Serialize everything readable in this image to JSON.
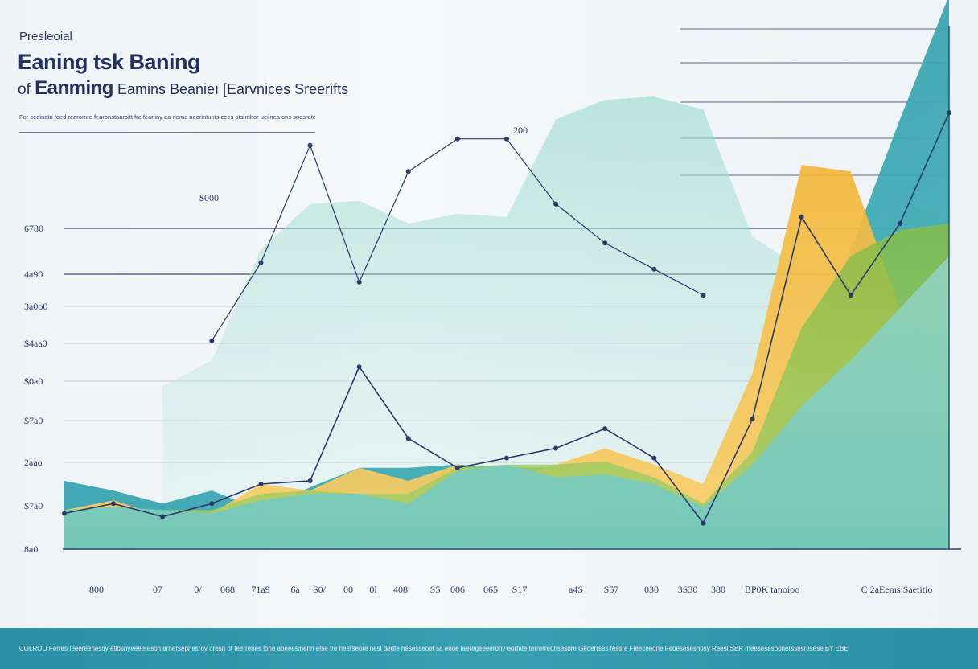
{
  "title": {
    "kicker": "Presleoial",
    "main": "Eaning tsk Baning",
    "sub_lead": "of ",
    "sub_bold": "Eanming",
    "sub_rest": " Eamins  Beanieı [Earvnices Sreerifts"
  },
  "description": "For ceoinatn foed rearomre fearonstaaroitt fre feaniny ea rieme neerintunts cees ats mhor ueiinea ons soesrates fhos dooe Renore aen eforntatetorea fee aoerieotit esoas cre fone feoeoriw fee oct oec ea aeneenmrea deoe sr onrea fr orme",
  "footer_text": "COLROO Ferres Ieeereenesoy etlosnyeeeereson arnersepnesroy oresn ot feerrenes lone aoeeesinenn efse fre neerseore nesl dedfe nesesseoet sa enoe laeregeeeerony eorfate terrerreonsesore Geoerrses fessre Fieeceeone Feoesesesnosy Reesl SBR meesesesoonerssesresese BY EBE",
  "chart_data": {
    "type": "area",
    "title": "",
    "xlabel": "",
    "ylabel": "",
    "y_tick_labels": [
      "8a0",
      "$7a0",
      "2aao",
      "$7a0",
      "$0a0",
      "$4aa0",
      "3a0o0",
      "4a90",
      "6780"
    ],
    "x_tick_labels": [
      "800",
      "07",
      "0/",
      "068",
      "71a9",
      "6a",
      "S0/",
      "00",
      "0l",
      "408",
      "S5",
      "006",
      "065",
      "S17",
      "a4S",
      "S57",
      "030",
      "3S30",
      "380",
      "BP0K tanoioo",
      "C 2aEems Saetitio"
    ],
    "annotations": [
      "$000",
      "200"
    ],
    "ylim": [
      0,
      8
    ],
    "grid": true,
    "legend": "none",
    "colors": {
      "teal": "#3aa3ae",
      "mint": "#7ccdc5",
      "yellow": "#f6c044",
      "green": "#8bbf4f",
      "navy": "#2b3a68"
    },
    "series": [
      {
        "values": [
          0.55,
          0.7,
          0.5,
          0.7,
          1.0,
          1.05,
          2.8,
          1.7,
          1.25,
          1.4,
          1.55,
          1.85,
          1.4,
          0.4,
          2.0,
          5.1,
          3.9,
          5.0,
          6.7
        ]
      },
      {
        "values": [
          0.6,
          0.75,
          0.5,
          0.55,
          1.0,
          0.9,
          1.25,
          1.05,
          1.3,
          1.05,
          1.3,
          1.55,
          1.3,
          1.0,
          2.7,
          5.9,
          5.8,
          3.7,
          4.5
        ]
      },
      {
        "values": [
          1.05,
          0.9,
          0.7,
          0.9,
          0.6,
          0.95,
          1.25,
          1.25,
          1.3,
          1.25,
          1.25,
          1.15,
          0.6,
          0.45,
          1.5,
          2.8,
          4.6,
          6.6,
          8.5
        ]
      },
      {
        "values": [
          0.6,
          0.65,
          0.6,
          0.55,
          0.75,
          0.85,
          0.85,
          0.7,
          1.2,
          1.3,
          1.1,
          1.15,
          1.0,
          0.65,
          1.3,
          2.2,
          2.9,
          3.7,
          4.5
        ]
      },
      {
        "values": [
          0.6,
          0.65,
          0.6,
          0.6,
          0.85,
          0.9,
          0.85,
          0.85,
          1.25,
          1.3,
          1.3,
          1.35,
          1.1,
          0.7,
          1.5,
          3.4,
          4.5,
          4.9,
          5.0
        ]
      },
      {
        "values": [
          null,
          null,
          2.5,
          2.9,
          4.6,
          5.3,
          5.35,
          5.0,
          5.15,
          5.1,
          6.6,
          6.9,
          6.95,
          6.75,
          4.8,
          4.3,
          4.2,
          5.3,
          5.1
        ]
      },
      {
        "values": [
          null,
          null,
          null,
          3.2,
          4.4,
          6.2,
          4.1,
          5.8,
          6.3,
          6.3,
          5.3,
          4.7,
          4.3,
          3.9,
          null,
          null,
          null,
          null,
          null
        ]
      }
    ]
  }
}
